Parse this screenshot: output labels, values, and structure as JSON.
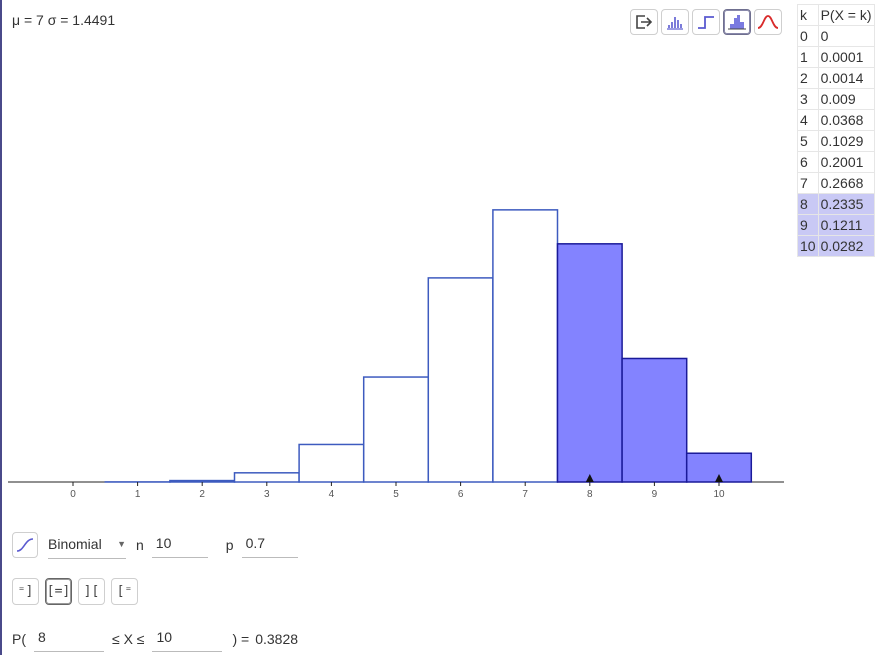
{
  "stats": {
    "text": "μ = 7 σ = 1.4491"
  },
  "toolbar": {
    "buttons": [
      {
        "name": "export-icon"
      },
      {
        "name": "bar-graph-icon"
      },
      {
        "name": "step-graph-icon"
      },
      {
        "name": "histogram-icon",
        "active": true
      },
      {
        "name": "normal-curve-icon"
      }
    ]
  },
  "table": {
    "header_k": "k",
    "header_p": "P(X = k)",
    "rows": [
      {
        "k": "0",
        "p": "0"
      },
      {
        "k": "1",
        "p": "0.0001"
      },
      {
        "k": "2",
        "p": "0.0014"
      },
      {
        "k": "3",
        "p": "0.009"
      },
      {
        "k": "4",
        "p": "0.0368"
      },
      {
        "k": "5",
        "p": "0.1029"
      },
      {
        "k": "6",
        "p": "0.2001"
      },
      {
        "k": "7",
        "p": "0.2668"
      },
      {
        "k": "8",
        "p": "0.2335"
      },
      {
        "k": "9",
        "p": "0.1211"
      },
      {
        "k": "10",
        "p": "0.0282"
      }
    ],
    "highlight_from": 8
  },
  "chart_data": {
    "type": "bar",
    "categories": [
      "0",
      "1",
      "2",
      "3",
      "4",
      "5",
      "6",
      "7",
      "8",
      "9",
      "10"
    ],
    "values": [
      0,
      0.0001,
      0.0014,
      0.009,
      0.0368,
      0.1029,
      0.2001,
      0.2668,
      0.2335,
      0.1211,
      0.0282
    ],
    "highlight_range": [
      8,
      10
    ],
    "markers": [
      8,
      10
    ],
    "colors": {
      "outline": "#3d5bbf",
      "fill": "#8383ff",
      "highlight_stroke": "#1a1a99"
    }
  },
  "distribution": {
    "type": "Binomial",
    "n_label": "n",
    "n_value": "10",
    "p_label": "p",
    "p_value": "0.7"
  },
  "interval_buttons": [
    {
      "name": "left-sided-button",
      "label": "⁼]"
    },
    {
      "name": "interval-button",
      "label": "[=]",
      "active": true
    },
    {
      "name": "two-tailed-button",
      "label": "]["
    },
    {
      "name": "right-sided-button",
      "label": "[⁼"
    }
  ],
  "probability": {
    "prefix": "P(",
    "lower": "8",
    "middle": "≤ X ≤",
    "upper": "10",
    "suffix": ") =",
    "result": "0.3828"
  }
}
